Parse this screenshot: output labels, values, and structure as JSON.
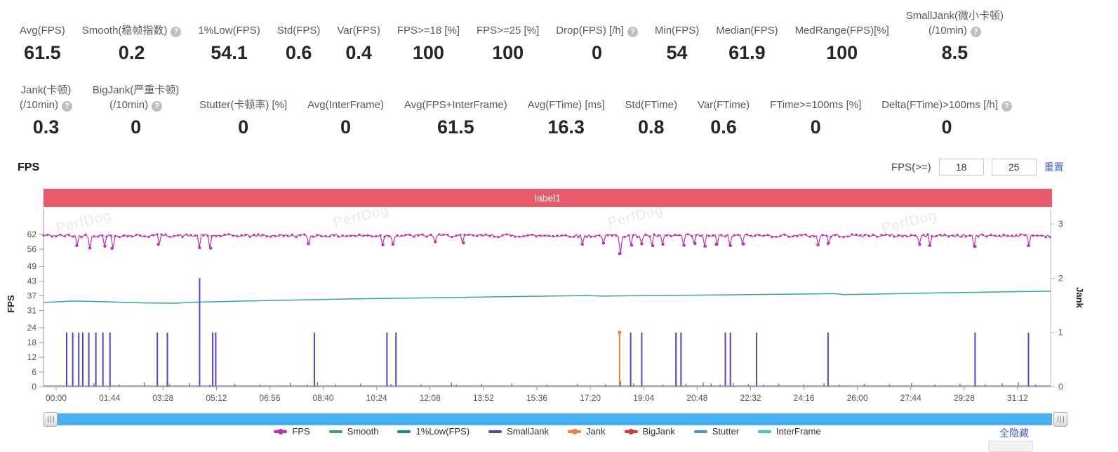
{
  "section_title": "FPS",
  "watermark": "PerfDog",
  "banner": {
    "label": "label1",
    "color": "#e85a6a"
  },
  "controls": {
    "fps_ge_label": "FPS(>=)",
    "input1": "18",
    "input2": "25",
    "reset_label": "重置",
    "hide_all_label": "全隐藏"
  },
  "metrics": {
    "row1": [
      {
        "label": "Avg(FPS)",
        "value": "61.5"
      },
      {
        "label": "Smooth(稳帧指数)",
        "help": true,
        "value": "0.2"
      },
      {
        "label": "1%Low(FPS)",
        "value": "54.1"
      },
      {
        "label": "Std(FPS)",
        "value": "0.6"
      },
      {
        "label": "Var(FPS)",
        "value": "0.4"
      },
      {
        "label": "FPS>=18 [%]",
        "value": "100"
      },
      {
        "label": "FPS>=25 [%]",
        "value": "100"
      },
      {
        "label": "Drop(FPS) [/h]",
        "help": true,
        "value": "0"
      },
      {
        "label": "Min(FPS)",
        "value": "54"
      },
      {
        "label": "Median(FPS)",
        "value": "61.9"
      },
      {
        "label": "MedRange(FPS)[%]",
        "value": "100"
      },
      {
        "label": "SmallJank(微小卡顿)",
        "label2": "(/10min)",
        "help": true,
        "value": "8.5"
      }
    ],
    "row2": [
      {
        "label": "Jank(卡顿)",
        "label2": "(/10min)",
        "help": true,
        "value": "0.3"
      },
      {
        "label": "BigJank(严重卡顿)",
        "label2": "(/10min)",
        "help": true,
        "value": "0"
      },
      {
        "label": "Stutter(卡顿率) [%]",
        "value": "0"
      },
      {
        "label": "Avg(InterFrame)",
        "value": "0"
      },
      {
        "label": "Avg(FPS+InterFrame)",
        "value": "61.5"
      },
      {
        "label": "Avg(FTime) [ms]",
        "value": "16.3"
      },
      {
        "label": "Std(FTime)",
        "value": "0.8"
      },
      {
        "label": "Var(FTime)",
        "value": "0.6"
      },
      {
        "label": "FTime>=100ms [%]",
        "value": "0"
      },
      {
        "label": "Delta(FTime)>100ms [/h]",
        "help": true,
        "value": "0"
      }
    ]
  },
  "chart_data": {
    "type": "line",
    "title": "FPS",
    "x_tick_labels": [
      "00:00",
      "01:44",
      "03:28",
      "05:12",
      "06:56",
      "08:40",
      "10:24",
      "12:08",
      "13:52",
      "15:36",
      "17:20",
      "19:04",
      "20:48",
      "22:32",
      "24:16",
      "26:00",
      "27:44",
      "29:28",
      "31:12"
    ],
    "left_axis": {
      "label": "FPS",
      "ticks": [
        0,
        6,
        12,
        18,
        24,
        31,
        37,
        43,
        49,
        56,
        62
      ],
      "range": [
        0,
        66
      ]
    },
    "right_axis": {
      "label": "Jank",
      "ticks": [
        0,
        1,
        2,
        3
      ],
      "range": [
        0,
        3
      ]
    },
    "grid": false,
    "legend_position": "bottom",
    "legend": [
      {
        "name": "FPS",
        "color": "#bb34b1",
        "dot": true
      },
      {
        "name": "Smooth",
        "color": "#49a54d",
        "dot": false
      },
      {
        "name": "1%Low(FPS)",
        "color": "#128c84",
        "dot": false
      },
      {
        "name": "SmallJank",
        "color": "#4f46cf",
        "dot": false
      },
      {
        "name": "Jank",
        "color": "#f08040",
        "dot": true
      },
      {
        "name": "BigJank",
        "color": "#d43c3c",
        "dot": true
      },
      {
        "name": "Stutter",
        "color": "#4e8fe0",
        "dot": false
      },
      {
        "name": "InterFrame",
        "color": "#41c8c8",
        "dot": false
      }
    ],
    "series": [
      {
        "name": "FPS",
        "axis": "left",
        "color": "#bb34b1",
        "style": "noisy-band",
        "baseline": 61.5,
        "noise": 1.15,
        "dips": [
          [
            0.033,
            57.5
          ],
          [
            0.046,
            56.5
          ],
          [
            0.061,
            57.2
          ],
          [
            0.068,
            56.3
          ],
          [
            0.114,
            58.0
          ],
          [
            0.155,
            56.6
          ],
          [
            0.166,
            56.4
          ],
          [
            0.263,
            58.2
          ],
          [
            0.337,
            57.8
          ],
          [
            0.347,
            58.0
          ],
          [
            0.389,
            59.0
          ],
          [
            0.417,
            58.6
          ],
          [
            0.535,
            58.0
          ],
          [
            0.556,
            58.5
          ],
          [
            0.572,
            54.2
          ],
          [
            0.584,
            57.6
          ],
          [
            0.594,
            58.2
          ],
          [
            0.605,
            57.4
          ],
          [
            0.615,
            58.0
          ],
          [
            0.636,
            57.6
          ],
          [
            0.647,
            58.3
          ],
          [
            0.657,
            57.2
          ],
          [
            0.668,
            58.0
          ],
          [
            0.682,
            57.5
          ],
          [
            0.695,
            58.1
          ],
          [
            0.769,
            57.7
          ],
          [
            0.779,
            58.3
          ],
          [
            0.87,
            58.0
          ],
          [
            0.88,
            57.5
          ],
          [
            0.925,
            57.1
          ],
          [
            0.978,
            57.4
          ]
        ]
      },
      {
        "name": "InterFrame",
        "axis": "left",
        "color": "#2fa89e",
        "style": "line",
        "points": [
          [
            0,
            34.3
          ],
          [
            0.03,
            34.9
          ],
          [
            0.06,
            34.6
          ],
          [
            0.1,
            34.1
          ],
          [
            0.13,
            34.0
          ],
          [
            0.15,
            34.4
          ],
          [
            0.2,
            34.9
          ],
          [
            0.25,
            35.3
          ],
          [
            0.3,
            35.7
          ],
          [
            0.35,
            36.0
          ],
          [
            0.4,
            36.3
          ],
          [
            0.45,
            36.6
          ],
          [
            0.5,
            36.9
          ],
          [
            0.54,
            37.1
          ],
          [
            0.555,
            36.9
          ],
          [
            0.6,
            37.1
          ],
          [
            0.65,
            37.3
          ],
          [
            0.7,
            37.5
          ],
          [
            0.75,
            37.7
          ],
          [
            0.785,
            37.9
          ],
          [
            0.795,
            37.5
          ],
          [
            0.85,
            37.9
          ],
          [
            0.9,
            38.3
          ],
          [
            0.95,
            38.6
          ],
          [
            1,
            38.9
          ]
        ]
      },
      {
        "name": "SmallJank",
        "axis": "right",
        "color": "#4f46cf",
        "style": "spikes",
        "spikes": [
          [
            0.023,
            1
          ],
          [
            0.029,
            1
          ],
          [
            0.035,
            1
          ],
          [
            0.039,
            1
          ],
          [
            0.045,
            1
          ],
          [
            0.052,
            1
          ],
          [
            0.059,
            1
          ],
          [
            0.066,
            1
          ],
          [
            0.113,
            1
          ],
          [
            0.123,
            1
          ],
          [
            0.155,
            2
          ],
          [
            0.168,
            1
          ],
          [
            0.171,
            1
          ],
          [
            0.269,
            1
          ],
          [
            0.341,
            1
          ],
          [
            0.35,
            1
          ],
          [
            0.583,
            1
          ],
          [
            0.594,
            1
          ],
          [
            0.628,
            1
          ],
          [
            0.633,
            1
          ],
          [
            0.677,
            1
          ],
          [
            0.682,
            1
          ],
          [
            0.708,
            1
          ],
          [
            0.779,
            1
          ],
          [
            0.925,
            1
          ],
          [
            0.978,
            1
          ]
        ]
      },
      {
        "name": "Jank",
        "axis": "right",
        "color": "#f08040",
        "style": "spikes-dot",
        "spikes": [
          [
            0.572,
            1
          ]
        ]
      },
      {
        "name": "Smooth",
        "axis": "left",
        "color": "#49a54d",
        "style": "spikes",
        "spikes": [
          [
            0.05,
            1.4
          ],
          [
            0.075,
            0.9
          ],
          [
            0.1,
            1.8
          ],
          [
            0.125,
            1.0
          ],
          [
            0.145,
            1.5
          ],
          [
            0.165,
            0.8
          ],
          [
            0.19,
            1.2
          ],
          [
            0.215,
            1.0
          ],
          [
            0.245,
            1.6
          ],
          [
            0.262,
            0.9
          ],
          [
            0.272,
            1.9
          ],
          [
            0.29,
            1.0
          ],
          [
            0.315,
            1.3
          ],
          [
            0.345,
            1.1
          ],
          [
            0.375,
            0.9
          ],
          [
            0.405,
            1.7
          ],
          [
            0.41,
            0.9
          ],
          [
            0.435,
            1.1
          ],
          [
            0.465,
            1.4
          ],
          [
            0.5,
            0.9
          ],
          [
            0.53,
            1.2
          ],
          [
            0.558,
            1.0
          ],
          [
            0.573,
            2.3
          ],
          [
            0.586,
            1.4
          ],
          [
            0.615,
            0.9
          ],
          [
            0.638,
            1.2
          ],
          [
            0.655,
            1.8
          ],
          [
            0.663,
            1.3
          ],
          [
            0.672,
            0.9
          ],
          [
            0.685,
            1.5
          ],
          [
            0.7,
            1.1
          ],
          [
            0.715,
            0.9
          ],
          [
            0.73,
            1.3
          ],
          [
            0.755,
            1.0
          ],
          [
            0.775,
            1.4
          ],
          [
            0.79,
            0.9
          ],
          [
            0.815,
            1.2
          ],
          [
            0.84,
            1.0
          ],
          [
            0.862,
            1.5
          ],
          [
            0.885,
            0.9
          ],
          [
            0.91,
            1.3
          ],
          [
            0.935,
            1.0
          ],
          [
            0.952,
            1.4
          ],
          [
            0.968,
            1.9
          ],
          [
            0.985,
            1.0
          ]
        ]
      },
      {
        "name": "BigJank",
        "axis": "right",
        "color": "#d43c3c",
        "style": "flat-zero",
        "value": 0
      },
      {
        "name": "Stutter",
        "axis": "right",
        "color": "#4e8fe0",
        "style": "flat-zero",
        "value": 0
      }
    ]
  }
}
